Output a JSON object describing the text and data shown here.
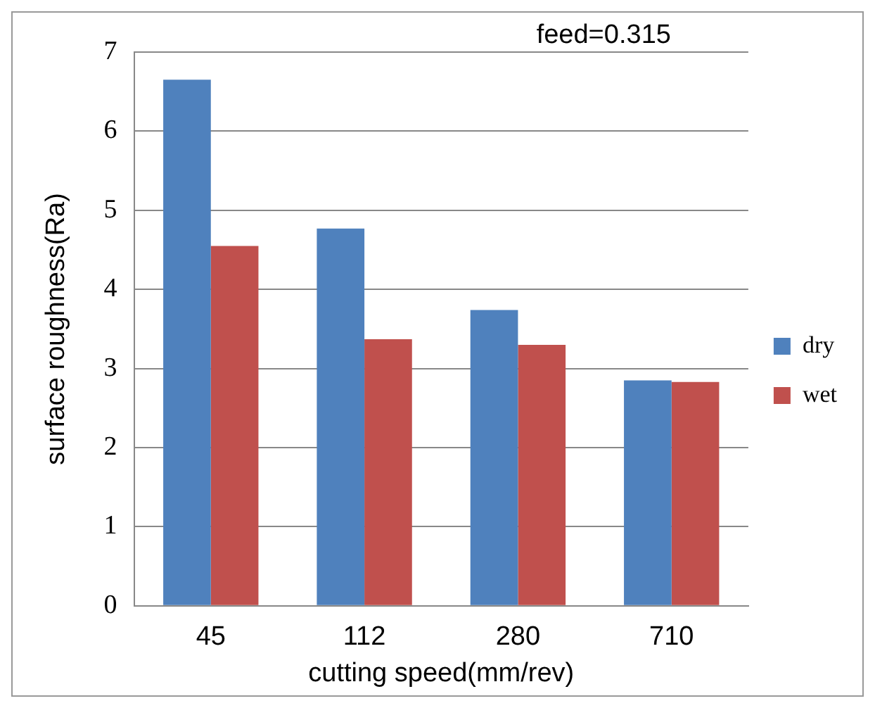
{
  "chart_data": {
    "type": "bar",
    "xlabel": "cutting speed(mm/rev)",
    "ylabel": "surface roughness(Ra)",
    "annotations": [
      "feed=0.315"
    ],
    "categories": [
      "45",
      "112",
      "280",
      "710"
    ],
    "series": [
      {
        "name": "dry",
        "color": "#4f81bd",
        "values": [
          6.65,
          4.77,
          3.74,
          2.85
        ]
      },
      {
        "name": "wet",
        "color": "#c0504d",
        "values": [
          4.55,
          3.37,
          3.3,
          2.83
        ]
      }
    ],
    "ylim": [
      0,
      7
    ],
    "yticks": [
      0,
      1,
      2,
      3,
      4,
      5,
      6,
      7
    ],
    "grid": "y",
    "legend": "right"
  }
}
